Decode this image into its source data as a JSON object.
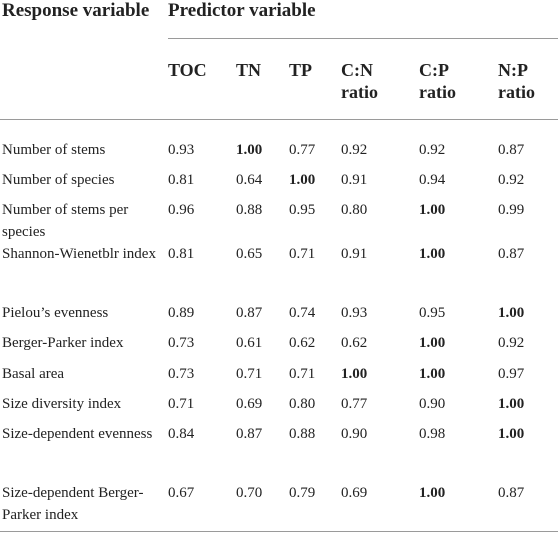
{
  "table": {
    "response_header": "Response variable",
    "predictor_header": "Predictor variable",
    "columns": [
      "TOC",
      "TN",
      "TP",
      "C:N ratio",
      "C:P ratio",
      "N:P ratio"
    ],
    "rows": [
      {
        "label": "Number of stems",
        "values": [
          "0.93",
          "1.00",
          "0.77",
          "0.92",
          "0.92",
          "0.87"
        ],
        "bold": [
          1
        ]
      },
      {
        "label": "Number of species",
        "values": [
          "0.81",
          "0.64",
          "1.00",
          "0.91",
          "0.94",
          "0.92"
        ],
        "bold": [
          2
        ]
      },
      {
        "label": "Number of stems per species",
        "values": [
          "0.96",
          "0.88",
          "0.95",
          "0.80",
          "1.00",
          "0.99"
        ],
        "bold": [
          4
        ]
      },
      {
        "label": "Shannon-Wienetblr index",
        "values": [
          "0.81",
          "0.65",
          "0.71",
          "0.91",
          "1.00",
          "0.87"
        ],
        "bold": [
          4
        ]
      },
      {
        "label": "Pielou’s evenness",
        "values": [
          "0.89",
          "0.87",
          "0.74",
          "0.93",
          "0.95",
          "1.00"
        ],
        "bold": [
          5
        ]
      },
      {
        "label": "Berger-Parker index",
        "values": [
          "0.73",
          "0.61",
          "0.62",
          "0.62",
          "1.00",
          "0.92"
        ],
        "bold": [
          4
        ]
      },
      {
        "label": "Basal area",
        "values": [
          "0.73",
          "0.71",
          "0.71",
          "1.00",
          "1.00",
          "0.97"
        ],
        "bold": [
          3,
          4
        ]
      },
      {
        "label": "Size diversity index",
        "values": [
          "0.71",
          "0.69",
          "0.80",
          "0.77",
          "0.90",
          "1.00"
        ],
        "bold": [
          5
        ]
      },
      {
        "label": "Size-dependent evenness",
        "values": [
          "0.84",
          "0.87",
          "0.88",
          "0.90",
          "0.98",
          "1.00"
        ],
        "bold": [
          5
        ]
      },
      {
        "label": "Size-dependent Berger-Parker index",
        "values": [
          "0.67",
          "0.70",
          "0.79",
          "0.69",
          "1.00",
          "0.87"
        ],
        "bold": [
          4
        ]
      }
    ]
  }
}
